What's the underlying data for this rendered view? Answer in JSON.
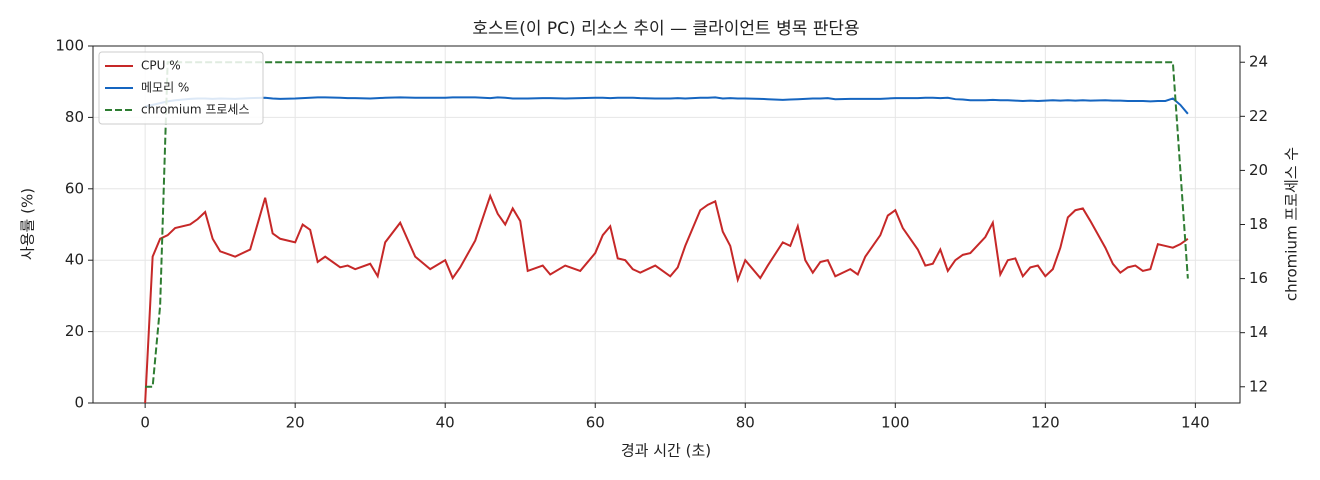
{
  "chart_data": {
    "type": "line",
    "title": "호스트(이 PC) 리소스 추이 — 클라이언트 병목 판단용",
    "x_label": "경과 시간 (초)",
    "y_label": "사용률 (%)",
    "y2_label": "chromium 프로세스 수",
    "x": [
      0,
      1,
      2,
      3,
      4,
      6,
      7,
      8,
      9,
      10,
      12,
      14,
      16,
      17,
      18,
      20,
      21,
      22,
      23,
      24,
      26,
      27,
      28,
      30,
      31,
      32,
      34,
      36,
      38,
      40,
      41,
      42,
      44,
      46,
      47,
      48,
      49,
      50,
      51,
      53,
      54,
      56,
      58,
      60,
      61,
      62,
      63,
      64,
      65,
      66,
      68,
      70,
      71,
      72,
      74,
      75,
      76,
      77,
      78,
      79,
      80,
      82,
      83,
      85,
      86,
      87,
      88,
      89,
      90,
      91,
      92,
      94,
      95,
      96,
      98,
      99,
      100,
      101,
      103,
      104,
      105,
      106,
      107,
      108,
      109,
      110,
      112,
      113,
      114,
      115,
      116,
      117,
      118,
      119,
      120,
      121,
      122,
      123,
      124,
      125,
      126,
      128,
      129,
      130,
      131,
      132,
      133,
      134,
      135,
      136,
      137,
      138,
      139
    ],
    "series": [
      {
        "name": "CPU %",
        "color": "#c62828",
        "linestyle": "solid",
        "values": [
          0,
          41,
          46,
          47,
          49,
          50,
          51.5,
          53.5,
          46,
          42.5,
          41,
          43,
          57.5,
          47.5,
          46,
          45,
          50,
          48.5,
          39.5,
          41,
          38,
          38.5,
          37.5,
          39,
          35.5,
          45,
          50.5,
          41,
          37.5,
          40,
          35,
          38,
          45.5,
          58,
          53,
          50,
          54.5,
          51,
          37,
          38.5,
          36,
          38.5,
          37,
          42,
          47,
          49.5,
          40.5,
          40,
          37.5,
          36.5,
          38.5,
          35.5,
          38,
          44,
          54,
          55.5,
          56.5,
          48,
          44,
          34.5,
          40,
          35,
          38.5,
          45,
          44,
          49.5,
          40,
          36.5,
          39.5,
          40,
          35.5,
          37.5,
          36,
          41,
          47,
          52.5,
          54,
          49,
          43,
          38.5,
          39,
          43,
          37,
          40,
          41.5,
          42,
          46.5,
          50.5,
          36,
          40,
          40.5,
          35.5,
          38,
          38.5,
          35.5,
          37.5,
          43.5,
          52,
          54,
          54.5,
          51,
          43.5,
          39,
          36.5,
          38,
          38.5,
          37,
          37.5,
          44.5,
          44,
          43.5,
          44.5,
          46
        ]
      },
      {
        "name": "메모리 %",
        "color": "#1565c0",
        "linestyle": "solid",
        "values": [
          83,
          83.5,
          84,
          84.5,
          84.8,
          85.2,
          85.3,
          85.3,
          85.2,
          85.3,
          85.2,
          85.4,
          85.5,
          85.3,
          85.2,
          85.3,
          85.4,
          85.5,
          85.6,
          85.6,
          85.5,
          85.4,
          85.4,
          85.3,
          85.4,
          85.5,
          85.6,
          85.5,
          85.5,
          85.5,
          85.6,
          85.6,
          85.6,
          85.4,
          85.6,
          85.5,
          85.3,
          85.3,
          85.3,
          85.4,
          85.4,
          85.3,
          85.4,
          85.5,
          85.5,
          85.4,
          85.5,
          85.5,
          85.5,
          85.4,
          85.3,
          85.3,
          85.4,
          85.3,
          85.5,
          85.5,
          85.6,
          85.3,
          85.4,
          85.3,
          85.3,
          85.2,
          85.1,
          84.9,
          85,
          85.1,
          85.2,
          85.3,
          85.3,
          85.4,
          85.1,
          85.2,
          85.2,
          85.2,
          85.2,
          85.3,
          85.4,
          85.4,
          85.4,
          85.5,
          85.5,
          85.4,
          85.5,
          85.1,
          85,
          84.8,
          84.8,
          84.9,
          84.8,
          84.8,
          84.7,
          84.6,
          84.7,
          84.6,
          84.7,
          84.8,
          84.7,
          84.8,
          84.7,
          84.8,
          84.7,
          84.8,
          84.7,
          84.7,
          84.6,
          84.6,
          84.6,
          84.5,
          84.6,
          84.6,
          85.3,
          83.5,
          81
        ]
      },
      {
        "name": "chromium 프로세스",
        "color": "#2e7d32",
        "linestyle": "dashed",
        "axis": "y2",
        "values": [
          12,
          12,
          15,
          24,
          24,
          24,
          24,
          24,
          24,
          24,
          24,
          24,
          24,
          24,
          24,
          24,
          24,
          24,
          24,
          24,
          24,
          24,
          24,
          24,
          24,
          24,
          24,
          24,
          24,
          24,
          24,
          24,
          24,
          24,
          24,
          24,
          24,
          24,
          24,
          24,
          24,
          24,
          24,
          24,
          24,
          24,
          24,
          24,
          24,
          24,
          24,
          24,
          24,
          24,
          24,
          24,
          24,
          24,
          24,
          24,
          24,
          24,
          24,
          24,
          24,
          24,
          24,
          24,
          24,
          24,
          24,
          24,
          24,
          24,
          24,
          24,
          24,
          24,
          24,
          24,
          24,
          24,
          24,
          24,
          24,
          24,
          24,
          24,
          24,
          24,
          24,
          24,
          24,
          24,
          24,
          24,
          24,
          24,
          24,
          24,
          24,
          24,
          24,
          24,
          24,
          24,
          24,
          24,
          24,
          24,
          24,
          20,
          16
        ]
      }
    ],
    "xlim": [
      -6.95,
      145.95
    ],
    "xticks": [
      0,
      20,
      40,
      60,
      80,
      100,
      120,
      140
    ],
    "ylim": [
      0,
      100
    ],
    "yticks": [
      0,
      20,
      40,
      60,
      80,
      100
    ],
    "y2lim": [
      11.4,
      24.6
    ],
    "y2ticks": [
      12,
      14,
      16,
      18,
      20,
      22,
      24
    ],
    "grid": true,
    "legend": "upper left"
  }
}
